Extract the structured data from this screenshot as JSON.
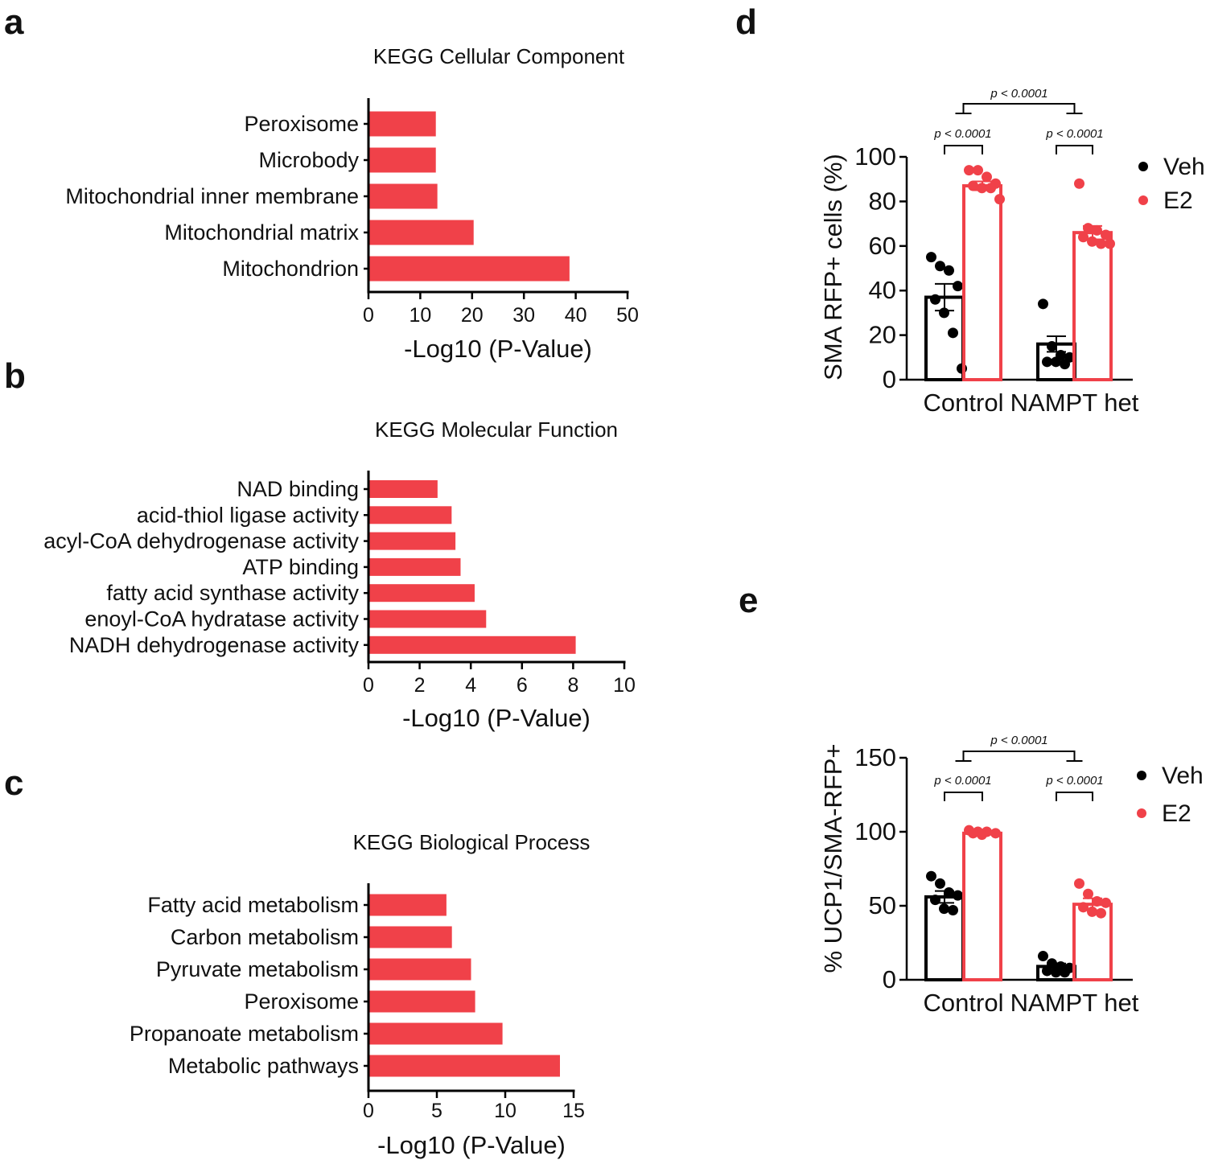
{
  "colors": {
    "red": "#f04149",
    "black": "#000000"
  },
  "chart_data": [
    {
      "panel": "a",
      "type": "bar",
      "orientation": "horizontal",
      "title": "KEGG Cellular Component",
      "xlabel": "-Log10 (P-Value)",
      "ylabel": "",
      "xlim": [
        0,
        50
      ],
      "xticks": [
        "0",
        "10",
        "20",
        "30",
        "40",
        "50"
      ],
      "categories": [
        "Peroxisome",
        "Microbody",
        "Mitochondrial inner membrane",
        "Mitochondrial matrix",
        "Mitochondrion"
      ],
      "values": [
        13,
        13,
        13.3,
        20.3,
        38.8
      ]
    },
    {
      "panel": "b",
      "type": "bar",
      "orientation": "horizontal",
      "title": "KEGG Molecular Function",
      "xlabel": "-Log10 (P-Value)",
      "ylabel": "",
      "xlim": [
        0,
        10
      ],
      "xticks": [
        "0",
        "2",
        "4",
        "6",
        "8",
        "10"
      ],
      "categories": [
        "NAD binding",
        "acid-thiol ligase activity",
        "acyl-CoA dehydrogenase activity",
        "ATP binding",
        "fatty acid synthase activity",
        "enoyl-CoA hydratase activity",
        "NADH dehydrogenase activity"
      ],
      "values": [
        2.7,
        3.25,
        3.4,
        3.6,
        4.15,
        4.6,
        8.1
      ]
    },
    {
      "panel": "c",
      "type": "bar",
      "orientation": "horizontal",
      "title": "KEGG Biological Process",
      "xlabel": "-Log10 (P-Value)",
      "ylabel": "",
      "xlim": [
        0,
        15
      ],
      "xticks": [
        "0",
        "5",
        "10",
        "15"
      ],
      "categories": [
        "Fatty acid metabolism",
        "Carbon metabolism",
        "Pyruvate metabolism",
        "Peroxisome",
        "Propanoate metabolism",
        "Metabolic pathways"
      ],
      "values": [
        5.7,
        6.1,
        7.5,
        7.8,
        9.8,
        14
      ]
    },
    {
      "panel": "d",
      "type": "bar",
      "title": "",
      "xlabel": "",
      "ylabel": "SMA RFP+ cells (%)",
      "ylim": [
        0,
        100
      ],
      "yticks": [
        "0",
        "20",
        "40",
        "60",
        "80",
        "100"
      ],
      "categories": [
        "Control",
        "NAMPT het"
      ],
      "legend": [
        "Veh",
        "E2"
      ],
      "series": [
        {
          "name": "Veh",
          "values": [
            37,
            16
          ],
          "sem": [
            6,
            3.5
          ],
          "points": [
            [
              55,
              51,
              49,
              42,
              36,
              30,
              21,
              5
            ],
            [
              34,
              15,
              11,
              10,
              8,
              8,
              7
            ]
          ]
        },
        {
          "name": "E2",
          "values": [
            87,
            66
          ],
          "sem": [
            2,
            3
          ],
          "points": [
            [
              94,
              94,
              91,
              88,
              87,
              86,
              86,
              81
            ],
            [
              88,
              68,
              67,
              65,
              64,
              62,
              61,
              61
            ]
          ]
        }
      ],
      "annotations": [
        {
          "text": "p < 0.0001",
          "between": "Control Veh vs Control E2"
        },
        {
          "text": "p < 0.0001",
          "between": "NAMPT het Veh vs NAMPT het E2"
        },
        {
          "text": "p < 0.0001",
          "between": "Control vs NAMPT het"
        }
      ]
    },
    {
      "panel": "e",
      "type": "bar",
      "title": "",
      "xlabel": "",
      "ylabel": "% UCP1/SMA-RFP+",
      "ylim": [
        0,
        150
      ],
      "yticks": [
        "0",
        "50",
        "100",
        "150"
      ],
      "categories": [
        "Control",
        "NAMPT het"
      ],
      "legend": [
        "Veh",
        "E2"
      ],
      "series": [
        {
          "name": "Veh",
          "values": [
            56,
            9
          ],
          "sem": [
            4,
            2
          ],
          "points": [
            [
              70,
              65,
              59,
              57,
              54,
              48,
              47
            ],
            [
              16,
              11,
              9,
              8,
              6,
              5,
              5
            ]
          ]
        },
        {
          "name": "E2",
          "values": [
            99,
            51
          ],
          "sem": [
            1,
            4
          ],
          "points": [
            [
              101,
              100,
              100,
              99,
              99,
              98
            ],
            [
              65,
              58,
              53,
              52,
              49,
              46,
              45
            ]
          ]
        }
      ],
      "annotations": [
        {
          "text": "p < 0.0001",
          "between": "Control Veh vs Control E2"
        },
        {
          "text": "p < 0.0001",
          "between": "NAMPT het Veh vs NAMPT het E2"
        },
        {
          "text": "p < 0.0001",
          "between": "Control vs NAMPT het"
        }
      ]
    }
  ]
}
